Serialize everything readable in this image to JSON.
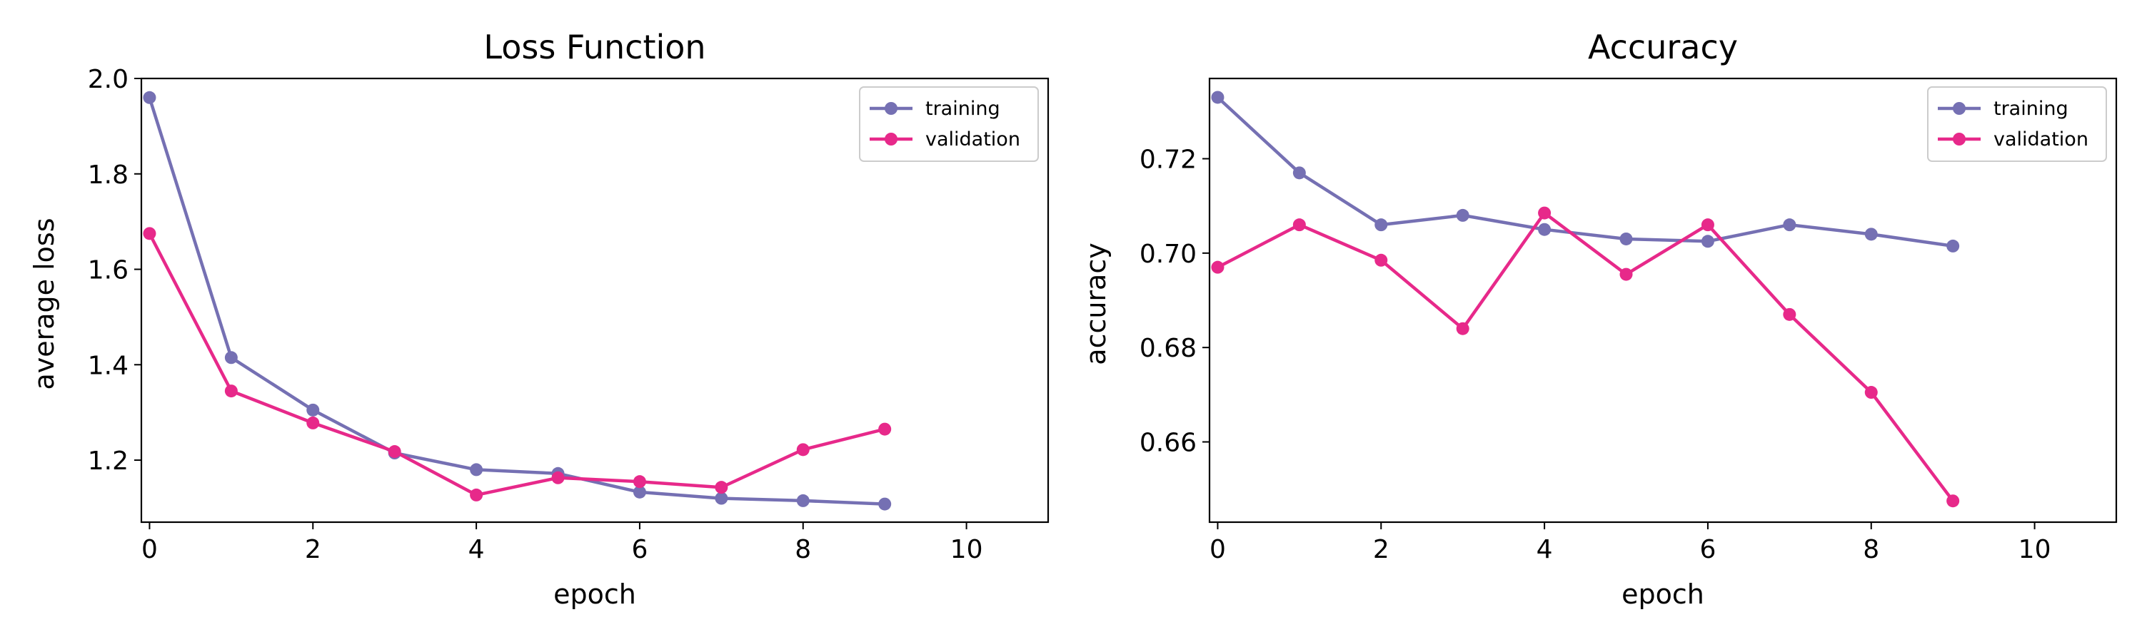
{
  "chart_data": [
    {
      "type": "line",
      "title": "Loss Function",
      "xlabel": "epoch",
      "ylabel": "average loss",
      "xlim": [
        -0.1,
        11
      ],
      "ylim": [
        1.07,
        2.0
      ],
      "xticks": [
        0,
        2,
        4,
        6,
        8,
        10
      ],
      "xtick_labels": [
        "0",
        "2",
        "4",
        "6",
        "8",
        "10"
      ],
      "yticks": [
        1.2,
        1.4,
        1.6,
        1.8,
        2.0
      ],
      "ytick_labels": [
        "1.2",
        "1.4",
        "1.6",
        "1.8",
        "2.0"
      ],
      "legend_position": "top-right",
      "grid": false,
      "series": [
        {
          "name": "training",
          "color": "#7570b3",
          "x": [
            0,
            1,
            2,
            3,
            4,
            5,
            6,
            7,
            8,
            9
          ],
          "y": [
            1.96,
            1.415,
            1.305,
            1.215,
            1.18,
            1.172,
            1.133,
            1.12,
            1.115,
            1.108
          ]
        },
        {
          "name": "validation",
          "color": "#e7298a",
          "x": [
            0,
            1,
            2,
            3,
            4,
            5,
            6,
            7,
            8,
            9
          ],
          "y": [
            1.675,
            1.345,
            1.278,
            1.218,
            1.127,
            1.163,
            1.155,
            1.143,
            1.222,
            1.265
          ]
        }
      ]
    },
    {
      "type": "line",
      "title": "Accuracy",
      "xlabel": "epoch",
      "ylabel": "accuracy",
      "xlim": [
        -0.1,
        11
      ],
      "ylim": [
        0.643,
        0.737
      ],
      "xticks": [
        0,
        2,
        4,
        6,
        8,
        10
      ],
      "xtick_labels": [
        "0",
        "2",
        "4",
        "6",
        "8",
        "10"
      ],
      "yticks": [
        0.66,
        0.68,
        0.7,
        0.72
      ],
      "ytick_labels": [
        "0.66",
        "0.68",
        "0.70",
        "0.72"
      ],
      "legend_position": "top-right",
      "grid": false,
      "series": [
        {
          "name": "training",
          "color": "#7570b3",
          "x": [
            0,
            1,
            2,
            3,
            4,
            5,
            6,
            7,
            8,
            9
          ],
          "y": [
            0.733,
            0.717,
            0.706,
            0.708,
            0.705,
            0.703,
            0.7025,
            0.706,
            0.704,
            0.7015
          ]
        },
        {
          "name": "validation",
          "color": "#e7298a",
          "x": [
            0,
            1,
            2,
            3,
            4,
            5,
            6,
            7,
            8,
            9
          ],
          "y": [
            0.697,
            0.706,
            0.6985,
            0.684,
            0.7085,
            0.6955,
            0.706,
            0.687,
            0.6705,
            0.6475
          ]
        }
      ]
    }
  ]
}
